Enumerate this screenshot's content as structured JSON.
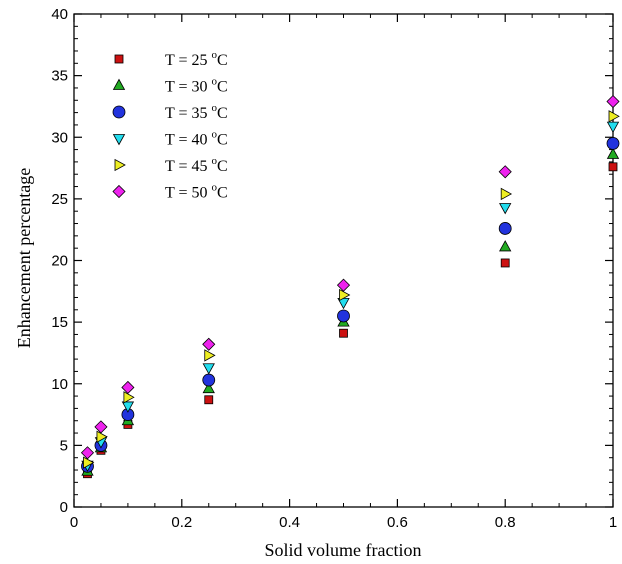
{
  "chart_data": {
    "type": "scatter",
    "title": "",
    "xlabel": "Solid volume fraction",
    "ylabel": "Enhancement percentage",
    "xlim": [
      0,
      1
    ],
    "ylim": [
      0,
      40
    ],
    "xticks": [
      0,
      0.2,
      0.4,
      0.6,
      0.8,
      1
    ],
    "xtick_labels": [
      "0",
      "0.2",
      "0.4",
      "0.6",
      "0.8",
      "1"
    ],
    "yticks": [
      0,
      5,
      10,
      15,
      20,
      25,
      30,
      35,
      40
    ],
    "ytick_labels": [
      "0",
      "5",
      "10",
      "15",
      "20",
      "25",
      "30",
      "35",
      "40"
    ],
    "grid": false,
    "legend_position": "top-left",
    "x": [
      0.025,
      0.05,
      0.1,
      0.25,
      0.5,
      0.8,
      1.0
    ],
    "series": [
      {
        "name": "T = 25 °C",
        "legend_text": "T = 25 ",
        "legend_sup": "o",
        "legend_unit": "C",
        "marker": "square",
        "color": "#cc1111",
        "values": [
          2.7,
          4.6,
          6.7,
          8.7,
          14.1,
          19.8,
          27.6
        ]
      },
      {
        "name": "T = 30 °C",
        "legend_text": "T = 30 ",
        "legend_sup": "o",
        "legend_unit": "C",
        "marker": "triangle-up",
        "color": "#22aa22",
        "values": [
          2.9,
          4.8,
          7.0,
          9.6,
          15.0,
          21.1,
          28.6
        ]
      },
      {
        "name": "T = 35 °C",
        "legend_text": "T = 35 ",
        "legend_sup": "o",
        "legend_unit": "C",
        "marker": "circle",
        "color": "#2233dd",
        "values": [
          3.3,
          5.0,
          7.5,
          10.3,
          15.5,
          22.6,
          29.5
        ]
      },
      {
        "name": "T = 40 °C",
        "legend_text": "T = 40 ",
        "legend_sup": "o",
        "legend_unit": "C",
        "marker": "triangle-down",
        "color": "#22ddee",
        "values": [
          3.4,
          5.3,
          8.2,
          11.3,
          16.6,
          24.3,
          30.9
        ]
      },
      {
        "name": "T = 45 °C",
        "legend_text": "T = 45 ",
        "legend_sup": "o",
        "legend_unit": "C",
        "marker": "triangle-right",
        "color": "#eeee22",
        "values": [
          3.6,
          5.7,
          8.9,
          12.3,
          17.2,
          25.4,
          31.7
        ]
      },
      {
        "name": "T = 50 °C",
        "legend_text": "T = 50 ",
        "legend_sup": "o",
        "legend_unit": "C",
        "marker": "diamond",
        "color": "#ee22ee",
        "values": [
          4.4,
          6.5,
          9.7,
          13.2,
          18.0,
          27.2,
          32.9
        ]
      }
    ]
  }
}
